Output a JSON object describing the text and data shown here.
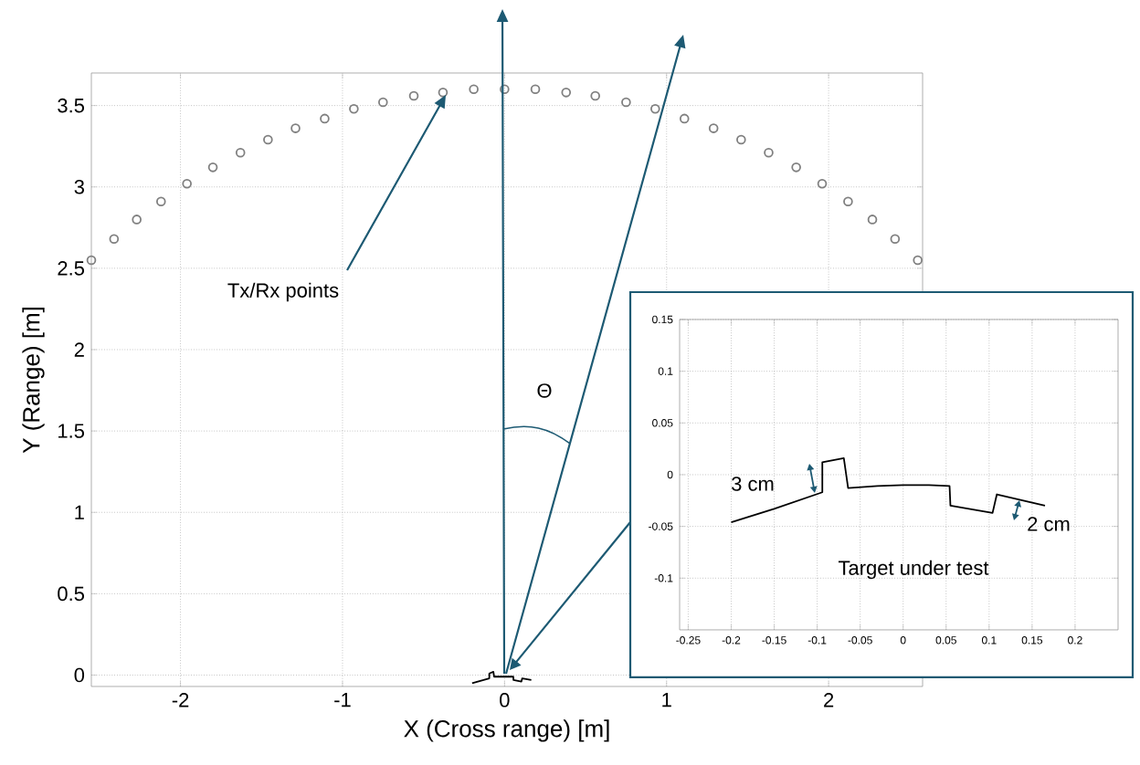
{
  "chart_data": [
    {
      "type": "scatter",
      "xlabel": "X (Cross range) [m]",
      "ylabel": "Y (Range) [m]",
      "xlim": [
        -2.55,
        2.58
      ],
      "ylim": [
        -0.07,
        3.7
      ],
      "xticks": [
        -2,
        -1,
        0,
        1,
        2
      ],
      "yticks": [
        0,
        0.5,
        1,
        1.5,
        2,
        2.5,
        3,
        3.5
      ],
      "grid": true,
      "series": [
        {
          "type": "scatter",
          "marker": "circle",
          "color": "#808080",
          "x": [
            -2.55,
            -2.41,
            -2.27,
            -2.12,
            -1.96,
            -1.8,
            -1.63,
            -1.46,
            -1.29,
            -1.11,
            -0.93,
            -0.75,
            -0.56,
            -0.38,
            -0.19,
            0,
            0.19,
            0.38,
            0.56,
            0.75,
            0.93,
            1.11,
            1.29,
            1.46,
            1.63,
            1.8,
            1.96,
            2.12,
            2.27,
            2.41,
            2.55
          ],
          "values": [
            2.55,
            2.68,
            2.8,
            2.91,
            3.02,
            3.12,
            3.21,
            3.29,
            3.36,
            3.42,
            3.48,
            3.52,
            3.56,
            3.58,
            3.6,
            3.6,
            3.6,
            3.58,
            3.56,
            3.52,
            3.48,
            3.42,
            3.36,
            3.29,
            3.21,
            3.12,
            3.02,
            2.91,
            2.8,
            2.68,
            2.55
          ]
        },
        {
          "type": "line",
          "color": "#000000",
          "x": [
            -0.2,
            -0.094,
            -0.094,
            -0.069,
            -0.064,
            0,
            0.054,
            0.055,
            0.104,
            0.109,
            0.165
          ],
          "values": [
            -0.05,
            -0.02,
            0.01,
            0.02,
            -0.01,
            -0.01,
            -0.01,
            -0.03,
            -0.04,
            -0.02,
            -0.03
          ]
        }
      ],
      "annotations": [
        "Tx/Rx points",
        "Θ"
      ]
    },
    {
      "type": "line",
      "xlim": [
        -0.26,
        0.25
      ],
      "ylim": [
        -0.15,
        0.15
      ],
      "xticks": [
        -0.25,
        -0.2,
        -0.15,
        -0.1,
        -0.05,
        0,
        0.05,
        0.1,
        0.15,
        0.2
      ],
      "yticks": [
        -0.1,
        -0.05,
        0,
        0.05,
        0.1,
        0.15
      ],
      "grid": true,
      "series": [
        {
          "color": "#000000",
          "x": [
            -0.2,
            -0.15,
            -0.094,
            -0.094,
            -0.069,
            -0.064,
            -0.03,
            0,
            0.03,
            0.054,
            0.055,
            0.104,
            0.109,
            0.165
          ],
          "values": [
            -0.046,
            -0.033,
            -0.017,
            0.012,
            0.016,
            -0.013,
            -0.011,
            -0.01,
            -0.01,
            -0.011,
            -0.03,
            -0.037,
            -0.019,
            -0.03
          ]
        }
      ],
      "annotations": [
        "3 cm",
        "2 cm",
        "Target under test"
      ]
    }
  ]
}
